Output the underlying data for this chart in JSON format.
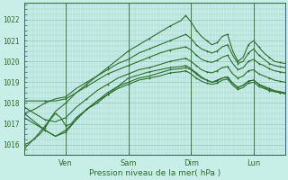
{
  "title": "",
  "xlabel": "Pression niveau de la mer( hPa )",
  "ylabel": "",
  "bg_color": "#c8eee8",
  "grid_color": "#a0d0c8",
  "line_color": "#2d6e2d",
  "ylim": [
    1015.5,
    1022.8
  ],
  "xlim": [
    0,
    100
  ],
  "day_labels": [
    "Ven",
    "Sam",
    "Dim",
    "Lun"
  ],
  "day_positions": [
    16,
    40,
    64,
    88
  ],
  "yticks": [
    1016,
    1017,
    1018,
    1019,
    1020,
    1021,
    1022
  ],
  "series": [
    {
      "x": [
        0,
        4,
        8,
        12,
        16,
        20,
        24,
        28,
        32,
        36,
        40,
        44,
        48,
        52,
        56,
        60,
        62,
        64,
        66,
        68,
        70,
        72,
        74,
        76,
        78,
        80,
        82,
        84,
        86,
        88,
        90,
        92,
        94,
        96,
        98,
        100
      ],
      "y": [
        1015.8,
        1016.3,
        1016.9,
        1017.6,
        1018.0,
        1018.5,
        1018.9,
        1019.3,
        1019.7,
        1020.1,
        1020.5,
        1020.8,
        1021.1,
        1021.4,
        1021.7,
        1021.95,
        1022.2,
        1021.9,
        1021.5,
        1021.2,
        1021.0,
        1020.8,
        1020.9,
        1021.2,
        1021.3,
        1020.5,
        1020.0,
        1020.2,
        1020.8,
        1021.0,
        1020.7,
        1020.4,
        1020.2,
        1020.0,
        1019.95,
        1019.9
      ]
    },
    {
      "x": [
        0,
        4,
        8,
        12,
        16,
        20,
        24,
        28,
        32,
        36,
        40,
        44,
        48,
        52,
        56,
        60,
        62,
        64,
        66,
        68,
        70,
        72,
        74,
        76,
        78,
        80,
        82,
        84,
        86,
        88,
        90,
        92,
        94,
        96,
        98,
        100
      ],
      "y": [
        1017.5,
        1017.7,
        1018.0,
        1018.2,
        1018.3,
        1018.7,
        1019.0,
        1019.3,
        1019.6,
        1019.9,
        1020.1,
        1020.4,
        1020.6,
        1020.8,
        1021.0,
        1021.2,
        1021.3,
        1021.1,
        1020.8,
        1020.6,
        1020.5,
        1020.4,
        1020.5,
        1020.7,
        1020.8,
        1020.3,
        1019.9,
        1020.0,
        1020.4,
        1020.6,
        1020.3,
        1020.1,
        1019.9,
        1019.8,
        1019.75,
        1019.7
      ]
    },
    {
      "x": [
        0,
        4,
        8,
        12,
        16,
        20,
        24,
        28,
        32,
        36,
        40,
        44,
        48,
        52,
        56,
        60,
        62,
        64,
        66,
        68,
        70,
        72,
        74,
        76,
        78,
        80,
        82,
        84,
        86,
        88,
        90,
        92,
        94,
        96,
        98,
        100
      ],
      "y": [
        1018.1,
        1018.1,
        1018.1,
        1018.1,
        1018.2,
        1018.5,
        1018.8,
        1019.1,
        1019.4,
        1019.6,
        1019.8,
        1020.0,
        1020.2,
        1020.4,
        1020.55,
        1020.65,
        1020.7,
        1020.55,
        1020.3,
        1020.1,
        1020.0,
        1019.95,
        1020.05,
        1020.2,
        1020.3,
        1019.9,
        1019.6,
        1019.7,
        1020.0,
        1020.1,
        1019.9,
        1019.8,
        1019.65,
        1019.55,
        1019.5,
        1019.45
      ]
    },
    {
      "x": [
        0,
        4,
        8,
        12,
        16,
        20,
        24,
        28,
        32,
        36,
        40,
        44,
        48,
        52,
        56,
        60,
        62,
        64,
        66,
        68,
        70,
        72,
        74,
        76,
        78,
        80,
        82,
        84,
        86,
        88,
        90,
        92,
        94,
        96,
        98,
        100
      ],
      "y": [
        1017.8,
        1017.5,
        1017.2,
        1017.1,
        1017.3,
        1017.8,
        1018.2,
        1018.6,
        1018.9,
        1019.2,
        1019.4,
        1019.6,
        1019.7,
        1019.85,
        1020.0,
        1020.1,
        1020.15,
        1020.0,
        1019.8,
        1019.6,
        1019.5,
        1019.45,
        1019.55,
        1019.7,
        1019.75,
        1019.4,
        1019.2,
        1019.3,
        1019.55,
        1019.6,
        1019.4,
        1019.3,
        1019.2,
        1019.1,
        1019.05,
        1019.0
      ]
    },
    {
      "x": [
        0,
        4,
        8,
        12,
        16,
        20,
        24,
        28,
        32,
        36,
        40,
        44,
        48,
        52,
        56,
        60,
        62,
        64,
        66,
        68,
        70,
        72,
        74,
        76,
        78,
        80,
        82,
        84,
        86,
        88,
        90,
        92,
        94,
        96,
        98,
        100
      ],
      "y": [
        1017.3,
        1017.0,
        1016.7,
        1016.4,
        1016.6,
        1017.2,
        1017.7,
        1018.1,
        1018.5,
        1018.8,
        1019.0,
        1019.2,
        1019.3,
        1019.45,
        1019.6,
        1019.65,
        1019.7,
        1019.6,
        1019.4,
        1019.2,
        1019.1,
        1019.0,
        1019.1,
        1019.2,
        1019.25,
        1018.95,
        1018.75,
        1018.85,
        1019.05,
        1019.1,
        1018.9,
        1018.8,
        1018.7,
        1018.6,
        1018.55,
        1018.5
      ]
    },
    {
      "x": [
        0,
        4,
        8,
        12,
        16,
        20,
        24,
        28,
        32,
        36,
        40,
        44,
        48,
        52,
        56,
        60,
        62,
        64,
        66,
        68,
        70,
        72,
        74,
        76,
        78,
        80,
        82,
        84,
        86,
        88,
        90,
        92,
        94,
        96,
        98,
        100
      ],
      "y": [
        1017.5,
        1017.1,
        1016.7,
        1016.4,
        1016.7,
        1017.2,
        1017.7,
        1018.1,
        1018.4,
        1018.7,
        1018.9,
        1019.1,
        1019.2,
        1019.3,
        1019.45,
        1019.5,
        1019.55,
        1019.4,
        1019.2,
        1019.05,
        1018.95,
        1018.9,
        1018.95,
        1019.1,
        1019.15,
        1018.85,
        1018.65,
        1018.75,
        1018.95,
        1019.0,
        1018.8,
        1018.7,
        1018.6,
        1018.55,
        1018.5,
        1018.45
      ]
    },
    {
      "x": [
        0,
        2,
        4,
        6,
        8,
        10,
        12,
        14,
        16,
        18,
        20,
        22,
        24,
        26,
        28,
        30,
        32,
        34,
        36,
        38,
        40,
        44,
        48,
        52,
        56,
        60,
        62,
        64,
        66,
        68,
        70,
        72,
        74,
        76,
        78,
        80,
        82,
        84,
        86,
        88,
        90,
        92,
        94,
        96,
        98,
        100
      ],
      "y": [
        1016.0,
        1016.1,
        1016.3,
        1016.5,
        1016.8,
        1017.2,
        1017.5,
        1017.3,
        1016.9,
        1017.0,
        1017.3,
        1017.5,
        1017.7,
        1017.85,
        1018.0,
        1018.2,
        1018.4,
        1018.6,
        1018.8,
        1019.0,
        1019.2,
        1019.35,
        1019.5,
        1019.6,
        1019.7,
        1019.75,
        1019.8,
        1019.65,
        1019.45,
        1019.25,
        1019.1,
        1019.0,
        1019.05,
        1019.2,
        1019.25,
        1018.95,
        1018.75,
        1018.85,
        1019.05,
        1019.1,
        1018.9,
        1018.75,
        1018.65,
        1018.55,
        1018.5,
        1018.45
      ]
    }
  ]
}
